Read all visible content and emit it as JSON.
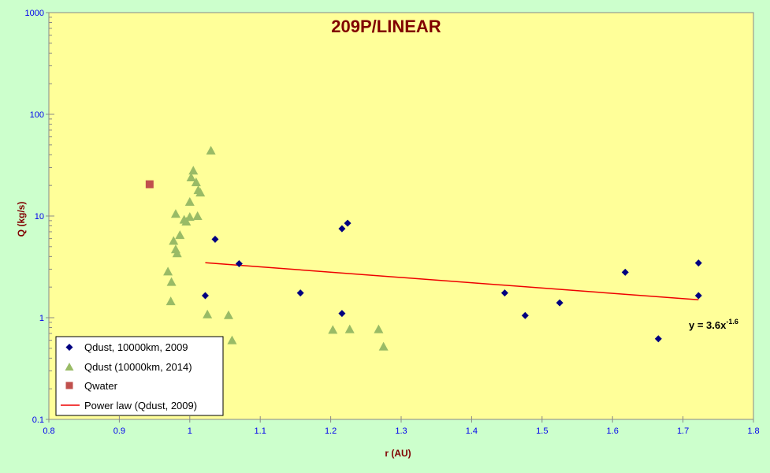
{
  "chart_data": {
    "type": "scatter",
    "title": "209P/LINEAR",
    "xlabel": "r (AU)",
    "ylabel": "Q (kg/s)",
    "xlim": [
      0.8,
      1.8
    ],
    "ylim": [
      0.1,
      1000
    ],
    "yscale": "log",
    "x_ticks": [
      "0.8",
      "0.9",
      "1",
      "1.1",
      "1.2",
      "1.3",
      "1.4",
      "1.5",
      "1.6",
      "1.7",
      "1.8"
    ],
    "y_ticks": [
      "0.1",
      "1",
      "10",
      "100",
      "1000"
    ],
    "grid": false,
    "legend_position": "bottom-left",
    "colors": {
      "plot_background": "#ffff99",
      "figure_background": "#ccffcc",
      "qdust_2009": "#000080",
      "qdust_2014": "#99bb66",
      "qwater": "#c0504d",
      "power_law": "#ee0000"
    },
    "series": [
      {
        "name": "Qdust, 10000km, 2009",
        "marker": "diamond",
        "points": [
          [
            1.022,
            1.65
          ],
          [
            1.036,
            5.9
          ],
          [
            1.07,
            3.4
          ],
          [
            1.157,
            1.75
          ],
          [
            1.216,
            7.5
          ],
          [
            1.224,
            8.5
          ],
          [
            1.216,
            1.1
          ],
          [
            1.447,
            1.75
          ],
          [
            1.476,
            1.05
          ],
          [
            1.525,
            1.4
          ],
          [
            1.618,
            2.8
          ],
          [
            1.665,
            0.62
          ],
          [
            1.722,
            3.45
          ],
          [
            1.722,
            1.65
          ]
        ]
      },
      {
        "name": "Qdust (10000km, 2014)",
        "marker": "triangle",
        "points": [
          [
            0.969,
            2.85
          ],
          [
            0.973,
            1.45
          ],
          [
            0.974,
            2.25
          ],
          [
            0.977,
            5.7
          ],
          [
            0.98,
            4.7
          ],
          [
            0.982,
            4.3
          ],
          [
            0.98,
            10.5
          ],
          [
            0.986,
            6.5
          ],
          [
            0.992,
            9.2
          ],
          [
            0.995,
            8.8
          ],
          [
            1.0,
            13.8
          ],
          [
            1.0,
            9.8
          ],
          [
            1.002,
            24.0
          ],
          [
            1.005,
            28.0
          ],
          [
            1.009,
            21.5
          ],
          [
            1.011,
            10.0
          ],
          [
            1.012,
            18.0
          ],
          [
            1.015,
            17.0
          ],
          [
            1.025,
            1.08
          ],
          [
            1.03,
            44.0
          ],
          [
            1.055,
            1.06
          ],
          [
            1.06,
            0.6
          ],
          [
            1.203,
            0.76
          ],
          [
            1.227,
            0.77
          ],
          [
            1.268,
            0.77
          ],
          [
            1.275,
            0.52
          ]
        ]
      },
      {
        "name": "Qwater",
        "marker": "square",
        "points": [
          [
            0.943,
            20.5
          ]
        ]
      },
      {
        "name": "Power law (Qdust, 2009)",
        "marker": "line",
        "points": [
          [
            1.022,
            3.47
          ],
          [
            1.722,
            1.5
          ]
        ]
      }
    ],
    "annotation": {
      "base": "y = 3.6x",
      "exponent": "-1.6"
    }
  }
}
